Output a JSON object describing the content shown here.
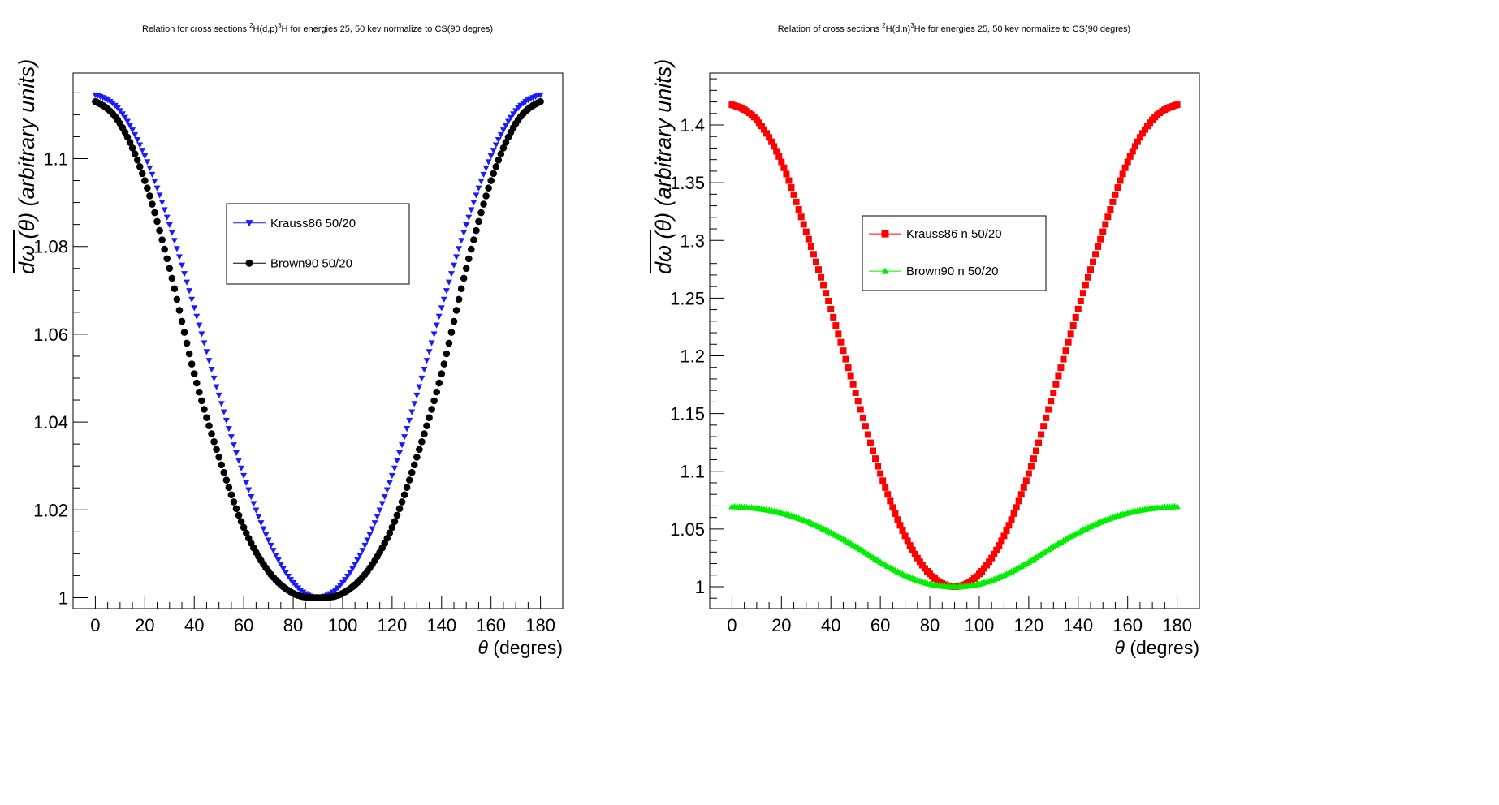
{
  "chart_data": [
    {
      "type": "scatter",
      "title_parts": [
        "Relation for cross sections ",
        "2",
        "H(d,p)",
        "3",
        "H for energies 25, 50 kev normalize to CS(90 degres)"
      ],
      "xlabel_symbol": "θ",
      "xlabel_text": " (degres)",
      "ylabel_visible": "dω  (θ) (arbitrary units)",
      "xlim": [
        -9,
        189
      ],
      "ylim": [
        0.9975,
        1.1195
      ],
      "x_ticks": [
        0,
        20,
        40,
        60,
        80,
        100,
        120,
        140,
        160,
        180
      ],
      "x_tick_labels": [
        "0",
        "20",
        "40",
        "60",
        "80",
        "100",
        "120",
        "140",
        "160",
        "180"
      ],
      "y_ticks": [
        1.0,
        1.02,
        1.04,
        1.06,
        1.08,
        1.1
      ],
      "y_tick_labels": [
        "1",
        "1.02",
        "1.04",
        "1.06",
        "1.08",
        "1.1"
      ],
      "y_minor_step": 0.005,
      "legend_position": "center",
      "series": [
        {
          "name": "Krauss86 50/20",
          "color": "#1a1aff",
          "marker": "triangle-down",
          "x": [
            0,
            10,
            20,
            30,
            40,
            50,
            60,
            70,
            80,
            90,
            100,
            110,
            120,
            130,
            140,
            150,
            160,
            170,
            180
          ],
          "values": [
            1.1145,
            1.1109,
            1.1006,
            1.0849,
            1.066,
            1.0461,
            1.0278,
            1.0131,
            1.0034,
            1.0,
            1.0034,
            1.0131,
            1.0278,
            1.0461,
            1.066,
            1.0849,
            1.1006,
            1.1109,
            1.1145
          ]
        },
        {
          "name": "Brown90 50/20",
          "color": "#000000",
          "marker": "circle",
          "x": [
            0,
            10,
            20,
            30,
            40,
            50,
            60,
            70,
            80,
            90,
            100,
            110,
            120,
            130,
            140,
            150,
            160,
            170,
            180
          ],
          "values": [
            1.113,
            1.108,
            1.095,
            1.075,
            1.051,
            1.032,
            1.016,
            1.006,
            1.001,
            1.0,
            1.001,
            1.006,
            1.016,
            1.032,
            1.051,
            1.075,
            1.095,
            1.108,
            1.113
          ]
        }
      ]
    },
    {
      "type": "scatter",
      "title_parts": [
        "Relation of cross sections ",
        "2",
        "H(d,n)",
        "3",
        "He for energies 25, 50 kev normalize to CS(90 degres)"
      ],
      "xlabel_symbol": "θ",
      "xlabel_text": " (degres)",
      "ylabel_visible": "dω  (θ) (arbitrary units)",
      "xlim": [
        -9,
        189
      ],
      "ylim": [
        0.981,
        1.445
      ],
      "x_ticks": [
        0,
        20,
        40,
        60,
        80,
        100,
        120,
        140,
        160,
        180
      ],
      "x_tick_labels": [
        "0",
        "20",
        "40",
        "60",
        "80",
        "100",
        "120",
        "140",
        "160",
        "180"
      ],
      "y_ticks": [
        1.0,
        1.05,
        1.1,
        1.15,
        1.2,
        1.25,
        1.3,
        1.35,
        1.4
      ],
      "y_tick_labels": [
        "1",
        "1.05",
        "1.1",
        "1.15",
        "1.2",
        "1.25",
        "1.3",
        "1.35",
        "1.4"
      ],
      "y_minor_step": 0.01,
      "legend_position": "center",
      "series": [
        {
          "name": "Krauss86 n 50/20",
          "color": "#ff0000",
          "marker": "square",
          "x": [
            0,
            10,
            20,
            30,
            40,
            50,
            60,
            70,
            80,
            90,
            100,
            110,
            120,
            130,
            140,
            150,
            160,
            170,
            180
          ],
          "values": [
            1.4175,
            1.4045,
            1.368,
            1.3075,
            1.2405,
            1.168,
            1.098,
            1.044,
            1.011,
            1.0,
            1.011,
            1.044,
            1.098,
            1.168,
            1.2405,
            1.3075,
            1.368,
            1.4045,
            1.4175
          ]
        },
        {
          "name": "Brown90 n 50/20",
          "color": "#00ee00",
          "marker": "triangle-up",
          "x": [
            0,
            10,
            20,
            30,
            40,
            50,
            60,
            70,
            80,
            90,
            100,
            110,
            120,
            130,
            140,
            150,
            160,
            170,
            180
          ],
          "values": [
            1.0695,
            1.068,
            1.064,
            1.057,
            1.047,
            1.035,
            1.0215,
            1.01,
            1.0025,
            1.0,
            1.0025,
            1.01,
            1.0215,
            1.035,
            1.047,
            1.057,
            1.064,
            1.068,
            1.0695
          ]
        }
      ]
    }
  ]
}
